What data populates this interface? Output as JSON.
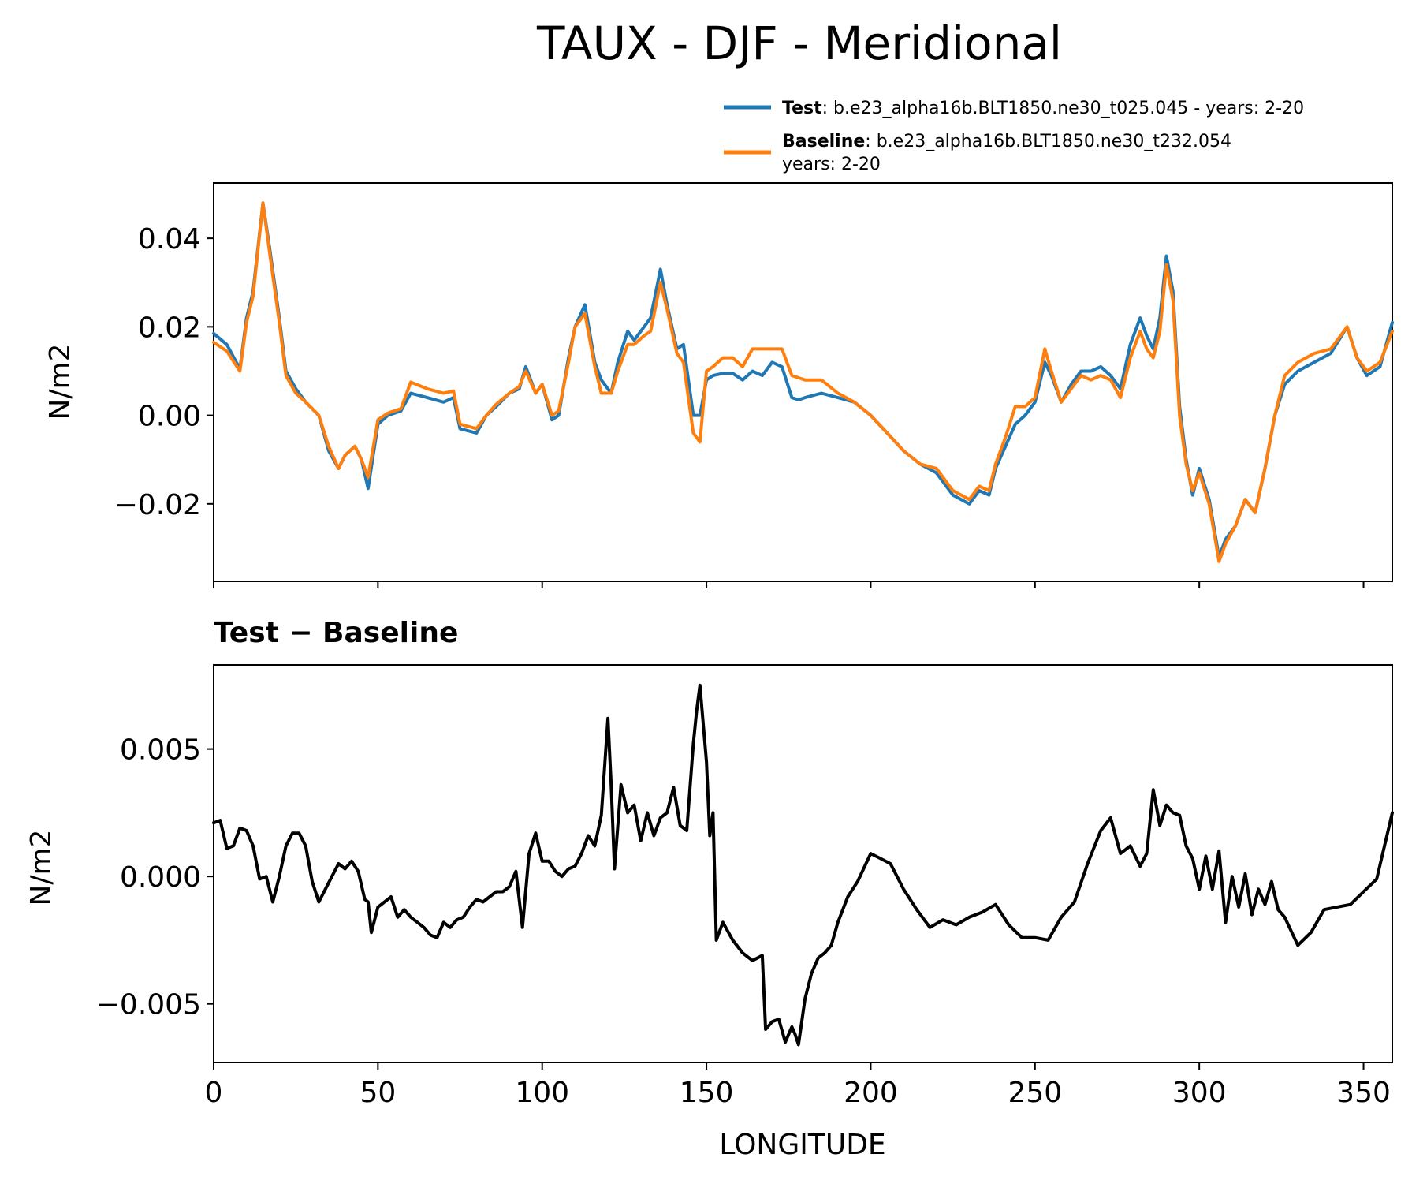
{
  "title": "TAUX - DJF - Meridional",
  "legend": [
    {
      "name": "Test",
      "case": ": b.e23_alpha16b.BLT1850.ne30_t025.045 - years: 2-20",
      "extra": "",
      "color": "#1f77b4"
    },
    {
      "name": "Baseline",
      "case": ": b.e23_alpha16b.BLT1850.ne30_t232.054",
      "extra": "years: 2-20",
      "color": "#ff7f0e"
    }
  ],
  "chart_data": [
    {
      "type": "line",
      "title": "",
      "xlabel": "",
      "ylabel": "N/m2",
      "xlim": [
        0,
        358.75
      ],
      "ylim": [
        -0.0375,
        0.0525
      ],
      "yticks": [
        "0.04",
        "0.02",
        "0.00",
        "−0.02"
      ],
      "ytick_values": [
        0.04,
        0.02,
        0.0,
        -0.02
      ],
      "xticks": [
        0,
        50,
        100,
        150,
        200,
        250,
        300,
        350
      ],
      "xtick_labels_shown": false,
      "grid": false,
      "legend_position": "above-right",
      "x": [
        0,
        4,
        8,
        10,
        12,
        15,
        17,
        20,
        22,
        25,
        28,
        32,
        35,
        38,
        40,
        43,
        45,
        47,
        50,
        53,
        57,
        60,
        65,
        70,
        73,
        75,
        80,
        83,
        86,
        90,
        93,
        95,
        98,
        100,
        103,
        105,
        108,
        110,
        113,
        116,
        118,
        121,
        123,
        126,
        128,
        131,
        133,
        136,
        138,
        141,
        143,
        146,
        148,
        150,
        152,
        155,
        158,
        161,
        164,
        167,
        170,
        173,
        176,
        178,
        180,
        185,
        190,
        195,
        200,
        205,
        210,
        215,
        220,
        225,
        230,
        233,
        236,
        238,
        241,
        244,
        247,
        250,
        253,
        255,
        258,
        261,
        264,
        267,
        270,
        273,
        276,
        279,
        282,
        284,
        286,
        288,
        290,
        292,
        294,
        296,
        298,
        300,
        303,
        306,
        308,
        311,
        314,
        317,
        320,
        323,
        326,
        330,
        335,
        340,
        345,
        348,
        351,
        355,
        358.75
      ],
      "series": [
        {
          "name": "Test",
          "color": "#1f77b4",
          "values": [
            0.0185,
            0.016,
            0.0105,
            0.022,
            0.028,
            0.048,
            0.038,
            0.022,
            0.01,
            0.006,
            0.003,
            0.0,
            -0.008,
            -0.012,
            -0.009,
            -0.007,
            -0.01,
            -0.0165,
            -0.002,
            0.0,
            0.001,
            0.005,
            0.004,
            0.003,
            0.004,
            -0.003,
            -0.004,
            0.0,
            0.002,
            0.005,
            0.006,
            0.011,
            0.005,
            0.007,
            -0.001,
            0.0,
            0.013,
            0.02,
            0.025,
            0.012,
            0.008,
            0.005,
            0.012,
            0.019,
            0.017,
            0.02,
            0.022,
            0.033,
            0.025,
            0.015,
            0.016,
            0.0,
            0.0,
            0.008,
            0.009,
            0.0095,
            0.0095,
            0.008,
            0.01,
            0.009,
            0.012,
            0.011,
            0.004,
            0.0035,
            0.004,
            0.005,
            0.004,
            0.003,
            0.0,
            -0.004,
            -0.008,
            -0.011,
            -0.013,
            -0.018,
            -0.02,
            -0.017,
            -0.018,
            -0.012,
            -0.007,
            -0.002,
            0.0,
            0.003,
            0.012,
            0.009,
            0.003,
            0.007,
            0.01,
            0.01,
            0.011,
            0.009,
            0.006,
            0.016,
            0.022,
            0.018,
            0.015,
            0.022,
            0.036,
            0.028,
            0.002,
            -0.01,
            -0.018,
            -0.012,
            -0.019,
            -0.032,
            -0.028,
            -0.025,
            -0.019,
            -0.022,
            -0.012,
            0.0,
            0.007,
            0.01,
            0.012,
            0.014,
            0.02,
            0.013,
            0.009,
            0.011,
            0.021
          ]
        },
        {
          "name": "Baseline",
          "color": "#ff7f0e",
          "values": [
            0.0165,
            0.0145,
            0.01,
            0.021,
            0.027,
            0.048,
            0.037,
            0.021,
            0.009,
            0.005,
            0.003,
            0.0,
            -0.007,
            -0.012,
            -0.009,
            -0.007,
            -0.01,
            -0.014,
            -0.001,
            0.0005,
            0.0015,
            0.0075,
            0.006,
            0.005,
            0.0055,
            -0.002,
            -0.003,
            0.0,
            0.0025,
            0.005,
            0.0065,
            0.01,
            0.005,
            0.007,
            0.0,
            0.001,
            0.012,
            0.02,
            0.023,
            0.011,
            0.005,
            0.005,
            0.01,
            0.016,
            0.016,
            0.018,
            0.019,
            0.03,
            0.024,
            0.014,
            0.012,
            -0.004,
            -0.006,
            0.01,
            0.011,
            0.013,
            0.013,
            0.011,
            0.015,
            0.015,
            0.015,
            0.015,
            0.009,
            0.0085,
            0.008,
            0.008,
            0.005,
            0.003,
            0.0,
            -0.004,
            -0.008,
            -0.011,
            -0.012,
            -0.017,
            -0.019,
            -0.016,
            -0.017,
            -0.011,
            -0.005,
            0.002,
            0.002,
            0.004,
            0.015,
            0.01,
            0.003,
            0.006,
            0.009,
            0.008,
            0.009,
            0.008,
            0.004,
            0.013,
            0.019,
            0.015,
            0.013,
            0.019,
            0.034,
            0.026,
            0.0,
            -0.011,
            -0.017,
            -0.013,
            -0.02,
            -0.033,
            -0.029,
            -0.025,
            -0.019,
            -0.022,
            -0.012,
            0.0,
            0.009,
            0.012,
            0.014,
            0.015,
            0.02,
            0.013,
            0.01,
            0.012,
            0.019
          ]
        }
      ]
    },
    {
      "type": "line",
      "title": "Test − Baseline",
      "xlabel": "LONGITUDE",
      "ylabel": "N/m2",
      "xlim": [
        0,
        358.75
      ],
      "ylim": [
        -0.0073,
        0.0083
      ],
      "yticks": [
        "0.005",
        "0.000",
        "−0.005"
      ],
      "ytick_values": [
        0.005,
        0.0,
        -0.005
      ],
      "xticks": [
        0,
        50,
        100,
        150,
        200,
        250,
        300,
        350
      ],
      "xtick_labels": [
        "0",
        "50",
        "100",
        "150",
        "200",
        "250",
        "300",
        "350"
      ],
      "grid": false,
      "x": [
        0,
        2,
        4,
        6,
        8,
        10,
        12,
        14,
        16,
        18,
        20,
        22,
        24,
        26,
        28,
        30,
        32,
        34,
        36,
        38,
        40,
        42,
        44,
        46,
        47,
        48,
        50,
        52,
        54,
        56,
        58,
        60,
        62,
        64,
        66,
        68,
        70,
        72,
        74,
        76,
        78,
        80,
        82,
        84,
        86,
        88,
        90,
        92,
        94,
        96,
        98,
        100,
        102,
        104,
        106,
        108,
        110,
        112,
        114,
        116,
        118,
        120,
        121,
        122,
        124,
        126,
        128,
        130,
        132,
        134,
        136,
        138,
        140,
        142,
        144,
        146,
        147,
        148,
        150,
        151,
        152,
        153,
        155,
        158,
        161,
        164,
        167,
        168,
        170,
        172,
        174,
        176,
        177,
        178,
        180,
        182,
        184,
        186,
        188,
        190,
        193,
        196,
        200,
        203,
        206,
        210,
        214,
        218,
        222,
        226,
        230,
        234,
        238,
        242,
        246,
        250,
        254,
        258,
        262,
        266,
        270,
        273,
        276,
        279,
        282,
        284,
        286,
        288,
        290,
        292,
        294,
        296,
        298,
        300,
        302,
        304,
        306,
        308,
        310,
        312,
        314,
        316,
        318,
        320,
        322,
        324,
        326,
        330,
        334,
        338,
        342,
        346,
        350,
        354,
        358.75
      ],
      "series": [
        {
          "name": "",
          "color": "#000000",
          "values": [
            0.0021,
            0.0022,
            0.0011,
            0.0012,
            0.0019,
            0.0018,
            0.0012,
            -0.0001,
            0.0,
            -0.001,
            0.0,
            0.0012,
            0.0017,
            0.0017,
            0.0012,
            -0.0002,
            -0.001,
            -0.0005,
            0.0,
            0.0005,
            0.0003,
            0.0006,
            0.0002,
            -0.0009,
            -0.001,
            -0.0022,
            -0.0012,
            -0.001,
            -0.0008,
            -0.0016,
            -0.0013,
            -0.0016,
            -0.0018,
            -0.002,
            -0.0023,
            -0.0024,
            -0.0018,
            -0.002,
            -0.0017,
            -0.0016,
            -0.0012,
            -0.0009,
            -0.001,
            -0.0008,
            -0.0006,
            -0.0006,
            -0.0004,
            0.0002,
            -0.002,
            0.0009,
            0.0017,
            0.0006,
            0.0006,
            0.0002,
            0.0,
            0.0003,
            0.0004,
            0.0009,
            0.0016,
            0.0012,
            0.0024,
            0.0062,
            0.0036,
            0.0003,
            0.0036,
            0.0025,
            0.0028,
            0.0014,
            0.0025,
            0.0016,
            0.0023,
            0.0025,
            0.0035,
            0.002,
            0.0018,
            0.0052,
            0.0065,
            0.0075,
            0.0045,
            0.0016,
            0.0025,
            -0.0025,
            -0.0018,
            -0.0025,
            -0.003,
            -0.0033,
            -0.0031,
            -0.006,
            -0.0057,
            -0.0056,
            -0.0065,
            -0.0059,
            -0.0062,
            -0.0066,
            -0.0048,
            -0.0038,
            -0.0032,
            -0.003,
            -0.0027,
            -0.0018,
            -0.0008,
            -0.0002,
            0.0009,
            0.0007,
            0.0005,
            -0.0005,
            -0.0013,
            -0.002,
            -0.0017,
            -0.0019,
            -0.0016,
            -0.0014,
            -0.0011,
            -0.0019,
            -0.0024,
            -0.0024,
            -0.0025,
            -0.0016,
            -0.001,
            0.0005,
            0.0018,
            0.0023,
            0.0009,
            0.0012,
            0.0004,
            0.0009,
            0.0034,
            0.002,
            0.0028,
            0.0025,
            0.0024,
            0.0012,
            0.0007,
            -0.0005,
            0.0008,
            -0.0005,
            0.001,
            -0.0018,
            0.0,
            -0.0012,
            0.0001,
            -0.0015,
            -0.0005,
            -0.0011,
            -0.0002,
            -0.0013,
            -0.0016,
            -0.0027,
            -0.0022,
            -0.0013,
            -0.0012,
            -0.0011,
            -0.0006,
            -0.0001,
            0.0025
          ]
        }
      ]
    }
  ]
}
